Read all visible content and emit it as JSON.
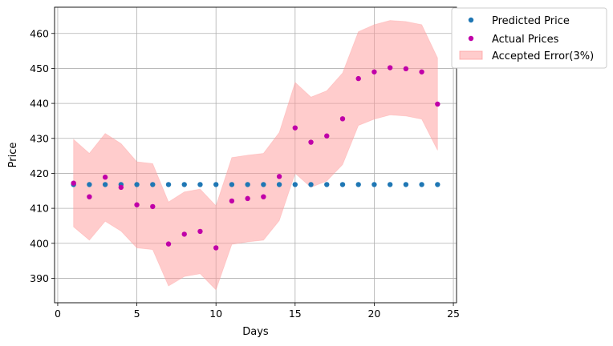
{
  "chart_data": {
    "type": "scatter",
    "xlabel": "Days",
    "ylabel": "Price",
    "xlim": [
      -0.2,
      25.2
    ],
    "ylim": [
      383,
      467.5
    ],
    "x_ticks": [
      0,
      5,
      10,
      15,
      20,
      25
    ],
    "y_ticks": [
      390,
      400,
      410,
      420,
      430,
      440,
      450,
      460
    ],
    "grid": true,
    "legend_position": "outside-top-right",
    "x": [
      1,
      2,
      3,
      4,
      5,
      6,
      7,
      8,
      9,
      10,
      11,
      12,
      13,
      14,
      15,
      16,
      17,
      18,
      19,
      20,
      21,
      22,
      23,
      24
    ],
    "series": [
      {
        "name": "Predicted Price",
        "type": "scatter",
        "color": "#1f77b4",
        "values": [
          416.8,
          416.8,
          416.8,
          416.8,
          416.8,
          416.8,
          416.8,
          416.8,
          416.8,
          416.8,
          416.8,
          416.8,
          416.8,
          416.8,
          416.8,
          416.8,
          416.8,
          416.8,
          416.8,
          416.8,
          416.8,
          416.8,
          416.8,
          416.8
        ]
      },
      {
        "name": "Actual Prices",
        "type": "scatter",
        "color": "#c000a8",
        "values": [
          417.2,
          413.3,
          418.9,
          416.0,
          411.0,
          410.5,
          399.8,
          402.6,
          403.4,
          398.7,
          412.1,
          412.8,
          413.3,
          419.1,
          433.0,
          428.9,
          430.7,
          435.6,
          447.1,
          449.0,
          450.2,
          449.9,
          449.0,
          439.8
        ]
      },
      {
        "name": "Accepted Error(3%)",
        "type": "band",
        "color": "#ff9999",
        "upper": [
          429.7,
          425.7,
          431.4,
          428.5,
          423.3,
          422.8,
          411.8,
          414.7,
          415.5,
          410.7,
          424.5,
          425.2,
          425.7,
          431.7,
          446.0,
          441.8,
          443.6,
          448.7,
          460.5,
          462.5,
          463.7,
          463.4,
          462.5,
          453.0
        ],
        "lower": [
          404.7,
          400.9,
          406.3,
          403.5,
          398.7,
          398.2,
          387.8,
          390.5,
          391.3,
          386.7,
          399.7,
          400.4,
          400.9,
          406.5,
          420.0,
          416.0,
          417.8,
          422.5,
          433.7,
          435.5,
          436.7,
          436.4,
          435.5,
          426.6
        ]
      }
    ]
  }
}
